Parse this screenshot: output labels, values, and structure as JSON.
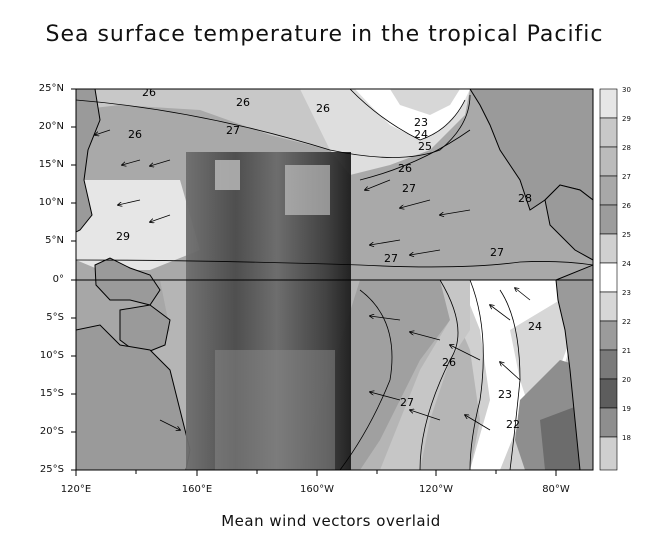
{
  "title": "Sea surface temperature in the tropical Pacific",
  "subtitle": "Mean wind vectors overlaid",
  "lat_labels": [
    "25°N",
    "20°N",
    "15°N",
    "10°N",
    "5°N",
    "0°",
    "5°S",
    "10°S",
    "15°S",
    "20°S",
    "25°S"
  ],
  "lon_labels": [
    "120°E",
    "160°E",
    "160°W",
    "120°W",
    "80°W"
  ],
  "colorbar_labels": [
    "30",
    "29",
    "28",
    "27",
    "26",
    "25",
    "24",
    "23",
    "22",
    "21",
    "20",
    "19",
    "18"
  ],
  "contour_labels": [
    "26",
    "26",
    "26",
    "27",
    "23",
    "24",
    "25",
    "26",
    "27",
    "26",
    "29",
    "28",
    "27",
    "27",
    "26",
    "27",
    "23",
    "22",
    "24"
  ],
  "colors": {
    "land": "#9a9a9a",
    "levels": [
      "#e6e6e6",
      "#c8c8c8",
      "#bbbbbb",
      "#a8a8a8",
      "#d0d0d0",
      "#ececec",
      "#ffffff",
      "#d7d7d7",
      "#9b9b9b",
      "#7a7a7a",
      "#5d5d5d",
      "#8e8e8e",
      "#cfcfcf"
    ]
  },
  "map": {
    "lon_range": [
      "120°E",
      "75°W"
    ],
    "lat_range": [
      "25°S",
      "25°N"
    ],
    "overlay": "satellite image patch over western Pacific"
  }
}
